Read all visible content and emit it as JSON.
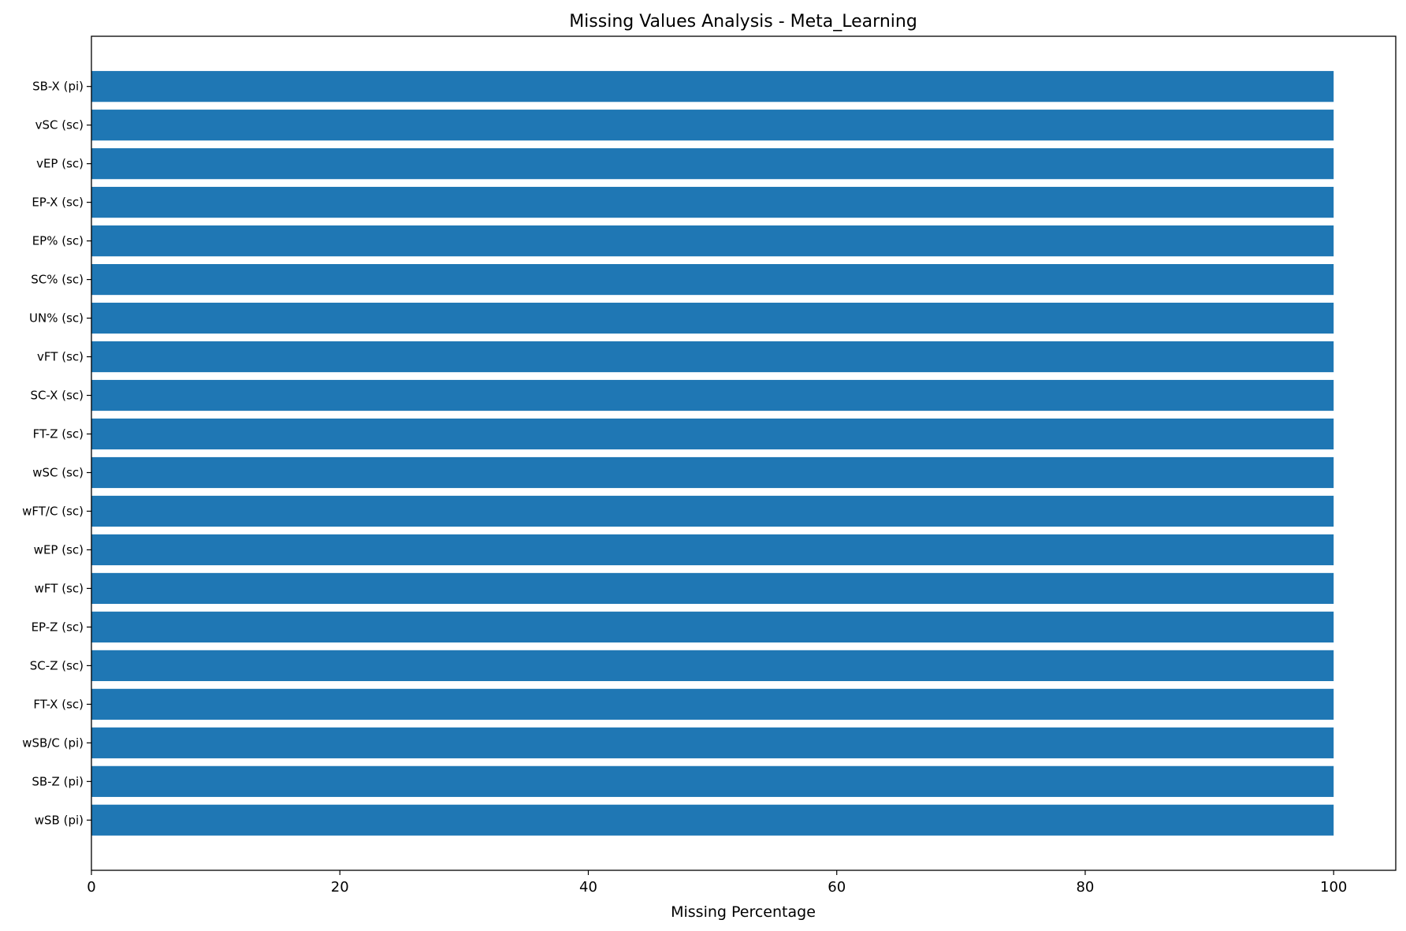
{
  "chart_data": {
    "type": "bar",
    "orientation": "horizontal",
    "title": "Missing Values Analysis - Meta_Learning",
    "xlabel": "Missing Percentage",
    "ylabel": "",
    "categories": [
      "SB-X (pi)",
      "vSC (sc)",
      "vEP (sc)",
      "EP-X (sc)",
      "EP% (sc)",
      "SC% (sc)",
      "UN% (sc)",
      "vFT (sc)",
      "SC-X (sc)",
      "FT-Z (sc)",
      "wSC (sc)",
      "wFT/C (sc)",
      "wEP (sc)",
      "wFT (sc)",
      "EP-Z (sc)",
      "SC-Z (sc)",
      "FT-X (sc)",
      "wSB/C (pi)",
      "SB-Z (pi)",
      "wSB (pi)"
    ],
    "values": [
      100,
      100,
      100,
      100,
      100,
      100,
      100,
      100,
      100,
      100,
      100,
      100,
      100,
      100,
      100,
      100,
      100,
      100,
      100,
      100
    ],
    "xlim": [
      0,
      105
    ],
    "xticks": [
      0,
      20,
      40,
      60,
      80,
      100
    ],
    "bar_color": "#1f77b4",
    "grid": false,
    "legend": "none"
  }
}
